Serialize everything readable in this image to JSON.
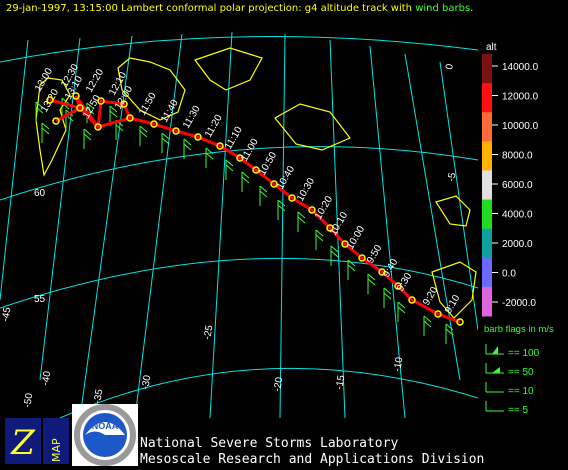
{
  "title": {
    "main": "29-jan-1997, 13:15:00  Lambert conformal polar projection:  g4 altitude track with ",
    "highlight": "wind barbs",
    "tail": "."
  },
  "colors": {
    "background": "#000000",
    "grid": "#00e5e5",
    "coast": "#ffff00",
    "track": "#ff0000",
    "marker": "#ffff00",
    "barbs": "#33ff33",
    "title": "#ffff00",
    "title_highlight": "#33ff33"
  },
  "grid_labels": {
    "latitudes": [
      "60",
      "55"
    ],
    "longitudes": [
      "-45",
      "-40",
      "-35",
      "-30",
      "-25",
      "-20",
      "-15",
      "-10",
      "-50",
      "-5",
      "0"
    ]
  },
  "track_times": [
    "13:20",
    "13:00",
    "13:10",
    "12:30",
    "12:50",
    "12:20",
    "12:10",
    "12:00",
    "11:50",
    "11:40",
    "11:30",
    "11:20",
    "11:10",
    "11:00",
    "10:50",
    "10:40",
    "10:30",
    "10:20",
    "10:10",
    "10:00",
    "9:50",
    "9:40",
    "9:30",
    "9:20",
    "9:10"
  ],
  "legend": {
    "title": "alt",
    "altitude_ticks": [
      "14000.0",
      "12000.0",
      "10000.0",
      "8000.0",
      "6000.0",
      "4000.0",
      "2000.0",
      "0.0",
      "-2000.0"
    ],
    "altitude_colors": [
      "#7a1010",
      "#ff1010",
      "#ff6a3a",
      "#ffb000",
      "#e0e0e0",
      "#20dd20",
      "#10a0a0",
      "#6a6aff",
      "#dd66dd"
    ],
    "barb_title": "barb flags in m/s",
    "barb_items": [
      "== 100",
      "== 50",
      "== 10",
      "== 5"
    ]
  },
  "logos": {
    "z": "Z",
    "map": "MAP",
    "noaa": "NOAA"
  },
  "footer": {
    "line1": "National Severe Storms Laboratory",
    "line2": "Mesoscale Research and Applications Division"
  }
}
